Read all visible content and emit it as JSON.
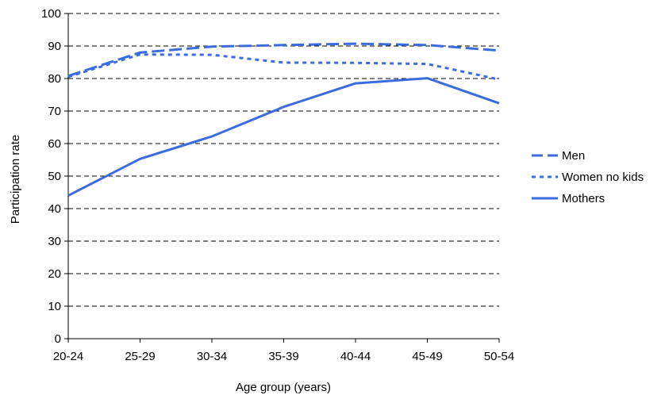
{
  "chart_data": {
    "type": "line",
    "title": "",
    "xlabel": "Age group (years)",
    "ylabel": "Participation rate",
    "categories": [
      "20-24",
      "25-29",
      "30-34",
      "35-39",
      "40-44",
      "45-49",
      "50-54"
    ],
    "ylim": [
      0,
      100
    ],
    "yticks": [
      0,
      10,
      20,
      30,
      40,
      50,
      60,
      70,
      80,
      90,
      100
    ],
    "grid": true,
    "legend_position": "right",
    "series": [
      {
        "name": "Men",
        "style": "long-dash",
        "color": "#3b6be0",
        "values": [
          80.8,
          88.0,
          89.8,
          90.3,
          90.7,
          90.3,
          88.6
        ]
      },
      {
        "name": "Women no kids",
        "style": "dotted",
        "color": "#3b6be0",
        "values": [
          80.5,
          87.4,
          87.3,
          84.9,
          84.8,
          84.5,
          79.7
        ]
      },
      {
        "name": "Mothers",
        "style": "solid",
        "color": "#3b6be0",
        "values": [
          44.0,
          55.3,
          62.2,
          71.3,
          78.5,
          80.1,
          72.4
        ]
      }
    ]
  }
}
